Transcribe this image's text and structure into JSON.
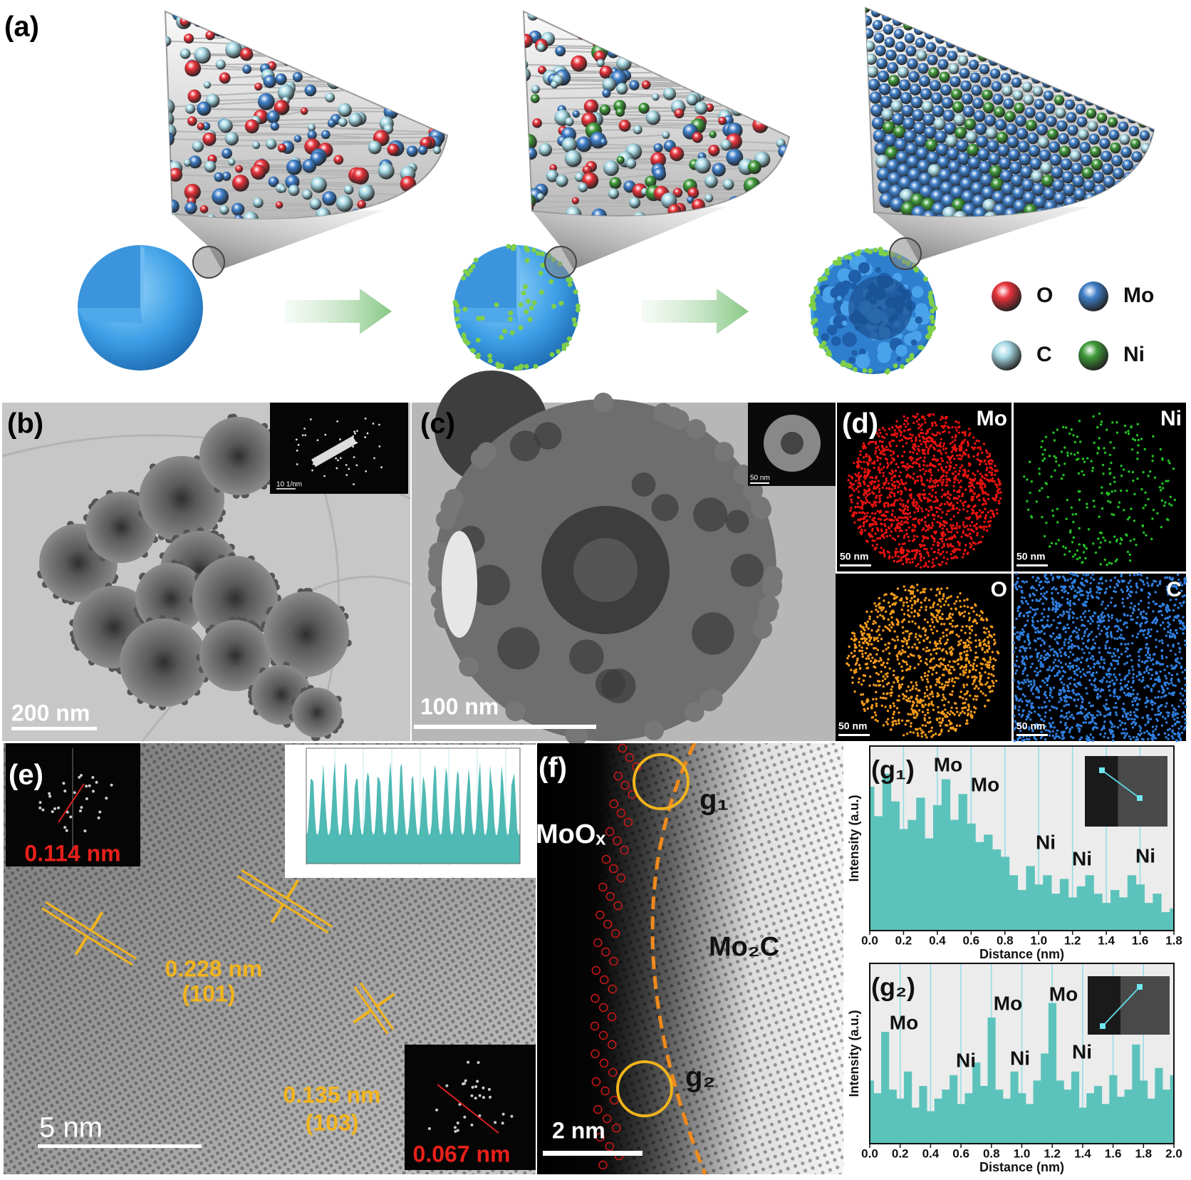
{
  "panel_a": {
    "label": "(a)",
    "legend": [
      {
        "symbol": "O",
        "color": "#e8323a"
      },
      {
        "symbol": "Mo",
        "color": "#3f7fc9"
      },
      {
        "symbol": "C",
        "color": "#a9dbe6"
      },
      {
        "symbol": "Ni",
        "color": "#3f9a3a"
      }
    ]
  },
  "panel_b": {
    "label": "(b)",
    "scale_bar": "200 nm",
    "inset_scale_bar": "10 1/nm"
  },
  "panel_c": {
    "label": "(c)",
    "scale_bar": "100 nm",
    "inset_scale_bar": "50 nm"
  },
  "panel_d": {
    "label": "(d)",
    "maps": [
      {
        "element": "Mo",
        "color": "#e8130f",
        "scale_bar": "50 nm"
      },
      {
        "element": "Ni",
        "color": "#22c222",
        "scale_bar": "50 nm"
      },
      {
        "element": "O",
        "color": "#f29a1c",
        "scale_bar": "50 nm"
      },
      {
        "element": "C",
        "color": "#2f7fe0",
        "scale_bar": "50 nm"
      }
    ]
  },
  "panel_e": {
    "label": "(e)",
    "scale_bar": "5 nm",
    "fft": [
      "0.114 nm",
      "0.067 nm"
    ],
    "fringes": [
      {
        "spacing": "0.228 nm",
        "plane": "(101)"
      },
      {
        "spacing": "0.135 nm",
        "plane": "(103)"
      }
    ]
  },
  "panel_f": {
    "label": "(f)",
    "scale_bar": "2 nm",
    "phases": [
      "MoOₓ",
      "Mo₂C"
    ],
    "profiles": [
      "g₁",
      "g₂"
    ]
  },
  "chart_data": [
    {
      "type": "bar",
      "title": "(g₁)",
      "xlabel": "Distance (nm)",
      "ylabel": "Intensity (a.u.)",
      "color": "#5cc3bc",
      "grid": true,
      "x": [
        0.0,
        0.05,
        0.1,
        0.15,
        0.2,
        0.25,
        0.3,
        0.35,
        0.4,
        0.45,
        0.5,
        0.55,
        0.6,
        0.65,
        0.7,
        0.75,
        0.8,
        0.85,
        0.9,
        0.95,
        1.0,
        1.05,
        1.1,
        1.15,
        1.2,
        1.25,
        1.3,
        1.35,
        1.4,
        1.45,
        1.5,
        1.55,
        1.6,
        1.65,
        1.7,
        1.75,
        1.8
      ],
      "values": [
        0.78,
        0.62,
        0.85,
        0.7,
        0.55,
        0.6,
        0.72,
        0.5,
        0.68,
        0.82,
        0.6,
        0.74,
        0.58,
        0.48,
        0.52,
        0.44,
        0.4,
        0.3,
        0.22,
        0.35,
        0.25,
        0.3,
        0.2,
        0.28,
        0.18,
        0.24,
        0.3,
        0.2,
        0.15,
        0.22,
        0.18,
        0.3,
        0.25,
        0.15,
        0.2,
        0.1,
        0.12
      ],
      "xlim": [
        0,
        1.8
      ],
      "ylim": [
        0,
        1
      ],
      "xticks": [
        {
          "value": 0,
          "label": "0.0"
        },
        0.2,
        0.4,
        0.6,
        0.8,
        {
          "value": 1,
          "label": "1.0"
        },
        1.2,
        1.4,
        1.6,
        1.8
      ],
      "annotations": [
        "Mo",
        "Mo",
        "Ni",
        "Ni",
        "Ni"
      ]
    },
    {
      "type": "bar",
      "title": "(g₂)",
      "xlabel": "Distance (nm)",
      "ylabel": "Intensity (a.u.)",
      "color": "#5cc3bc",
      "grid": true,
      "x": [
        0.0,
        0.05,
        0.1,
        0.15,
        0.2,
        0.25,
        0.3,
        0.35,
        0.4,
        0.45,
        0.5,
        0.55,
        0.6,
        0.65,
        0.7,
        0.75,
        0.8,
        0.85,
        0.9,
        0.95,
        1.0,
        1.05,
        1.1,
        1.15,
        1.2,
        1.25,
        1.3,
        1.35,
        1.4,
        1.45,
        1.5,
        1.55,
        1.6,
        1.65,
        1.7,
        1.75,
        1.8,
        1.85,
        1.9,
        1.95,
        2.0
      ],
      "values": [
        0.35,
        0.28,
        0.62,
        0.3,
        0.25,
        0.4,
        0.2,
        0.32,
        0.18,
        0.25,
        0.3,
        0.38,
        0.22,
        0.28,
        0.45,
        0.32,
        0.7,
        0.3,
        0.25,
        0.4,
        0.28,
        0.22,
        0.35,
        0.5,
        0.78,
        0.35,
        0.3,
        0.4,
        0.2,
        0.28,
        0.32,
        0.22,
        0.38,
        0.26,
        0.3,
        0.55,
        0.35,
        0.25,
        0.42,
        0.3,
        0.38
      ],
      "xlim": [
        0,
        2
      ],
      "ylim": [
        0,
        1
      ],
      "xticks": [
        {
          "value": 0,
          "label": "0.0"
        },
        0.2,
        0.4,
        0.6,
        0.8,
        {
          "value": 1,
          "label": "1.0"
        },
        1.2,
        1.4,
        1.6,
        1.8,
        {
          "value": 2,
          "label": "2.0"
        }
      ],
      "annotations": [
        "Mo",
        "Ni",
        "Mo",
        "Ni",
        "Mo",
        "Ni"
      ]
    }
  ]
}
